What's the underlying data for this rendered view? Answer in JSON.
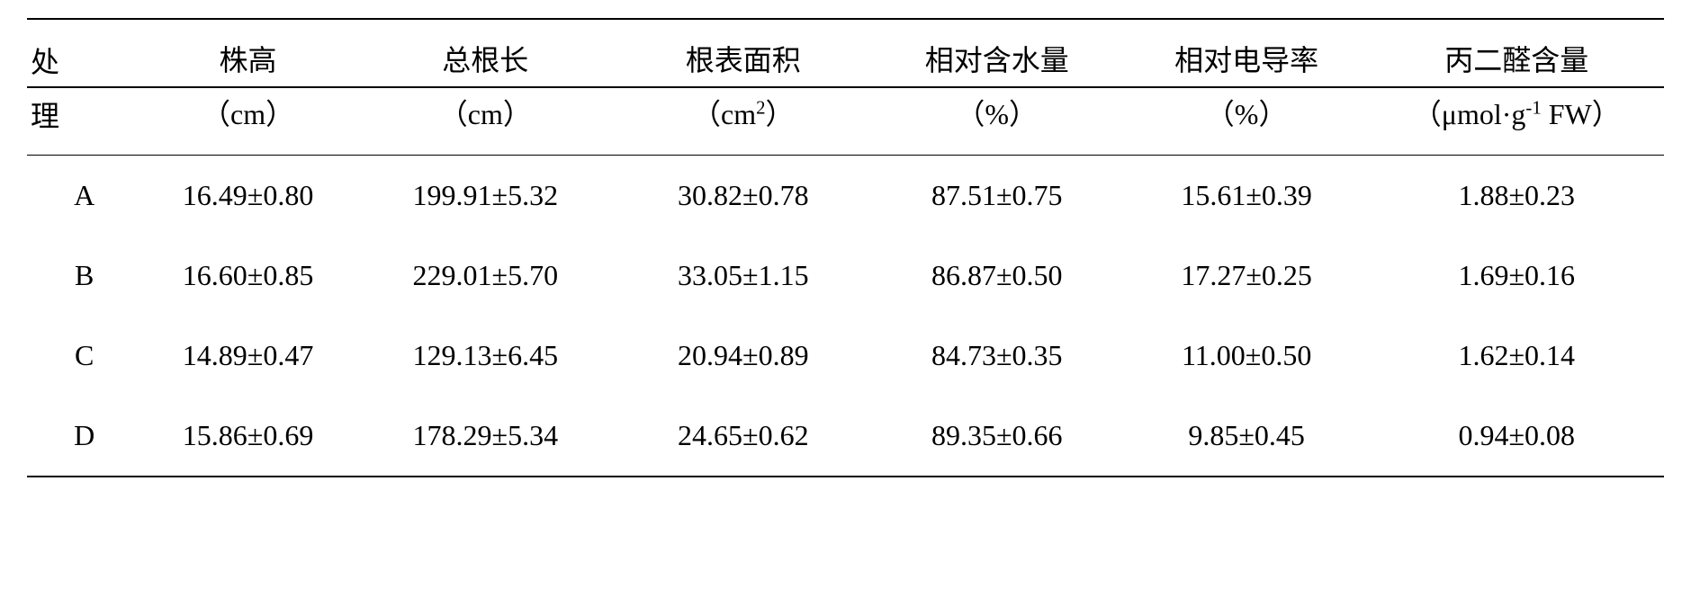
{
  "table": {
    "headers": [
      {
        "top": "处",
        "bot": "理"
      },
      {
        "top": "株高",
        "bot": "（cm）"
      },
      {
        "top": "总根长",
        "bot": "（cm）"
      },
      {
        "top": "根表面积",
        "bot_pre": "（cm",
        "sup": "2",
        "bot_post": "）"
      },
      {
        "top": "相对含水量",
        "bot": "（%）"
      },
      {
        "top": "相对电导率",
        "bot": "（%）"
      },
      {
        "top": "丙二醛含量",
        "bot_pre": "（μmol·g",
        "sup": "-1",
        "bot_post": " FW）"
      }
    ],
    "rows": [
      {
        "label": "A",
        "c1": "16.49±0.80",
        "c2": "199.91±5.32",
        "c3": "30.82±0.78",
        "c4": "87.51±0.75",
        "c5": "15.61±0.39",
        "c6": "1.88±0.23"
      },
      {
        "label": "B",
        "c1": "16.60±0.85",
        "c2": "229.01±5.70",
        "c3": "33.05±1.15",
        "c4": "86.87±0.50",
        "c5": "17.27±0.25",
        "c6": "1.69±0.16"
      },
      {
        "label": "C",
        "c1": "14.89±0.47",
        "c2": "129.13±6.45",
        "c3": "20.94±0.89",
        "c4": "84.73±0.35",
        "c5": "11.00±0.50",
        "c6": "1.62±0.14"
      },
      {
        "label": "D",
        "c1": "15.86±0.69",
        "c2": "178.29±5.34",
        "c3": "24.65±0.62",
        "c4": "89.35±0.66",
        "c5": "9.85±0.45",
        "c6": "0.94±0.08"
      }
    ]
  }
}
